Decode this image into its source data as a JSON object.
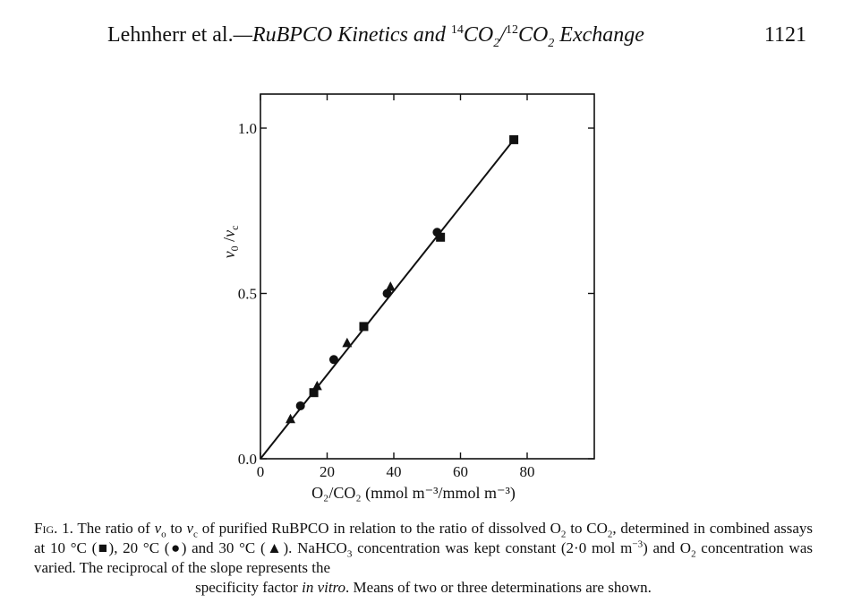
{
  "running_head": {
    "authors": "Lehnherr",
    "etal": " et al.",
    "dash": "—",
    "title_part1": "RuBPCO Kinetics and ",
    "sup14": "14",
    "co2a": "CO",
    "sub2a": "2",
    "slash": "/",
    "sup12": "12",
    "co2b": "CO",
    "sub2b": "2",
    "title_part2": " Exchange",
    "page_number": "1121"
  },
  "chart_data": {
    "type": "scatter",
    "ylabel_main": "v",
    "ylabel_sub0": "0",
    "ylabel_slash": " /",
    "ylabel_v": "v",
    "ylabel_subc": "c",
    "xlabel": "O₂/CO₂ (mmol m⁻³/mmol m⁻³)",
    "xlim": [
      0,
      100
    ],
    "ylim": [
      0,
      1.1
    ],
    "x_ticks": [
      {
        "value": 0,
        "label": "0"
      },
      {
        "value": 20,
        "label": "20"
      },
      {
        "value": 40,
        "label": "40"
      },
      {
        "value": 60,
        "label": "60"
      },
      {
        "value": 80,
        "label": "80"
      }
    ],
    "y_ticks": [
      {
        "value": 0,
        "label": "0.0"
      },
      {
        "value": 0.5,
        "label": "0.5"
      },
      {
        "value": 1.0,
        "label": "1.0"
      }
    ],
    "grid": false,
    "series": [
      {
        "marker": "square",
        "points": [
          [
            16,
            0.2
          ],
          [
            31,
            0.4
          ],
          [
            54,
            0.67
          ],
          [
            76,
            0.965
          ]
        ]
      },
      {
        "marker": "circle",
        "points": [
          [
            12,
            0.16
          ],
          [
            22,
            0.3
          ],
          [
            38,
            0.5
          ],
          [
            53,
            0.685
          ]
        ]
      },
      {
        "marker": "triangle",
        "points": [
          [
            9,
            0.12
          ],
          [
            17,
            0.22
          ],
          [
            26,
            0.35
          ],
          [
            39,
            0.52
          ]
        ]
      }
    ],
    "fit_line": {
      "x": [
        0,
        76
      ],
      "y": [
        0,
        0.965
      ]
    }
  },
  "caption": {
    "fig_label": "Fig. 1.",
    "text1": " The ratio of ",
    "v1": "v",
    "v1sub": "o",
    "text2": " to ",
    "v2": "v",
    "v2sub": "c",
    "text3": " of purified RuBPCO in relation to the ratio of dissolved O",
    "sub_a": "2",
    "text4": " to CO",
    "sub_b": "2",
    "text5": ", determined in combined assays at 10 °C (",
    "sym1": "■",
    "text6": "), 20 °C (",
    "sym2": "●",
    "text7": ") and 30 °C (",
    "sym3": "▲",
    "text8": "). NaHCO",
    "sub_c": "3",
    "text9": " concentration was kept constant (2·0 mol m",
    "sup_a": "−3",
    "text10": ") and O",
    "sub_d": "2",
    "text11": " concentration was varied. The reciprocal of the slope represents the",
    "last_text1": "specificity factor ",
    "last_italic": "in vitro",
    "last_text2": ". Means of two or three determinations are shown."
  }
}
